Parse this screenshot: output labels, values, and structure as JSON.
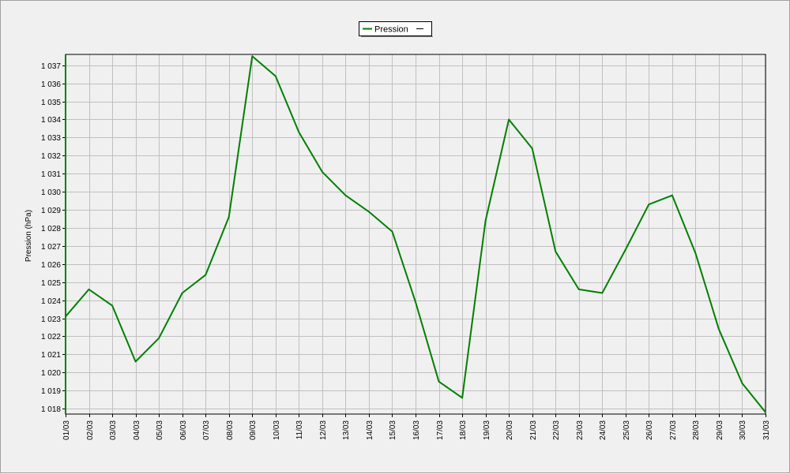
{
  "chart_data": {
    "type": "line",
    "ylabel": "Pression (hPa)",
    "categories": [
      "01/03",
      "02/03",
      "03/03",
      "04/03",
      "05/03",
      "06/03",
      "07/03",
      "08/03",
      "09/03",
      "10/03",
      "11/03",
      "12/03",
      "13/03",
      "14/03",
      "15/03",
      "16/03",
      "17/03",
      "18/03",
      "19/03",
      "20/03",
      "21/03",
      "22/03",
      "23/03",
      "24/03",
      "25/03",
      "26/03",
      "27/03",
      "28/03",
      "29/03",
      "30/03",
      "31/03"
    ],
    "ylim": [
      1017.7,
      1037.6
    ],
    "yticks": [
      1018,
      1019,
      1020,
      1021,
      1022,
      1023,
      1024,
      1025,
      1026,
      1027,
      1028,
      1029,
      1030,
      1031,
      1032,
      1033,
      1034,
      1035,
      1036,
      1037
    ],
    "ytick_labels": [
      "1 018",
      "1 019",
      "1 020",
      "1 021",
      "1 022",
      "1 023",
      "1 024",
      "1 025",
      "1 026",
      "1 027",
      "1 028",
      "1 029",
      "1 030",
      "1 031",
      "1 032",
      "1 033",
      "1 034",
      "1 035",
      "1 036",
      "1 037"
    ],
    "grid": true,
    "legend_position": "top-center",
    "series": [
      {
        "name": "Pression",
        "color": "#008000",
        "values": [
          1023.1,
          1024.6,
          1023.7,
          1020.6,
          1021.9,
          1024.4,
          1025.4,
          1028.6,
          1037.5,
          1036.4,
          1033.3,
          1031.1,
          1029.8,
          1028.9,
          1027.8,
          1023.9,
          1019.5,
          1018.6,
          1028.4,
          1034.0,
          1032.4,
          1026.7,
          1024.6,
          1024.4,
          1026.8,
          1029.3,
          1029.8,
          1026.6,
          1022.4,
          1019.4,
          1017.8
        ]
      }
    ]
  }
}
